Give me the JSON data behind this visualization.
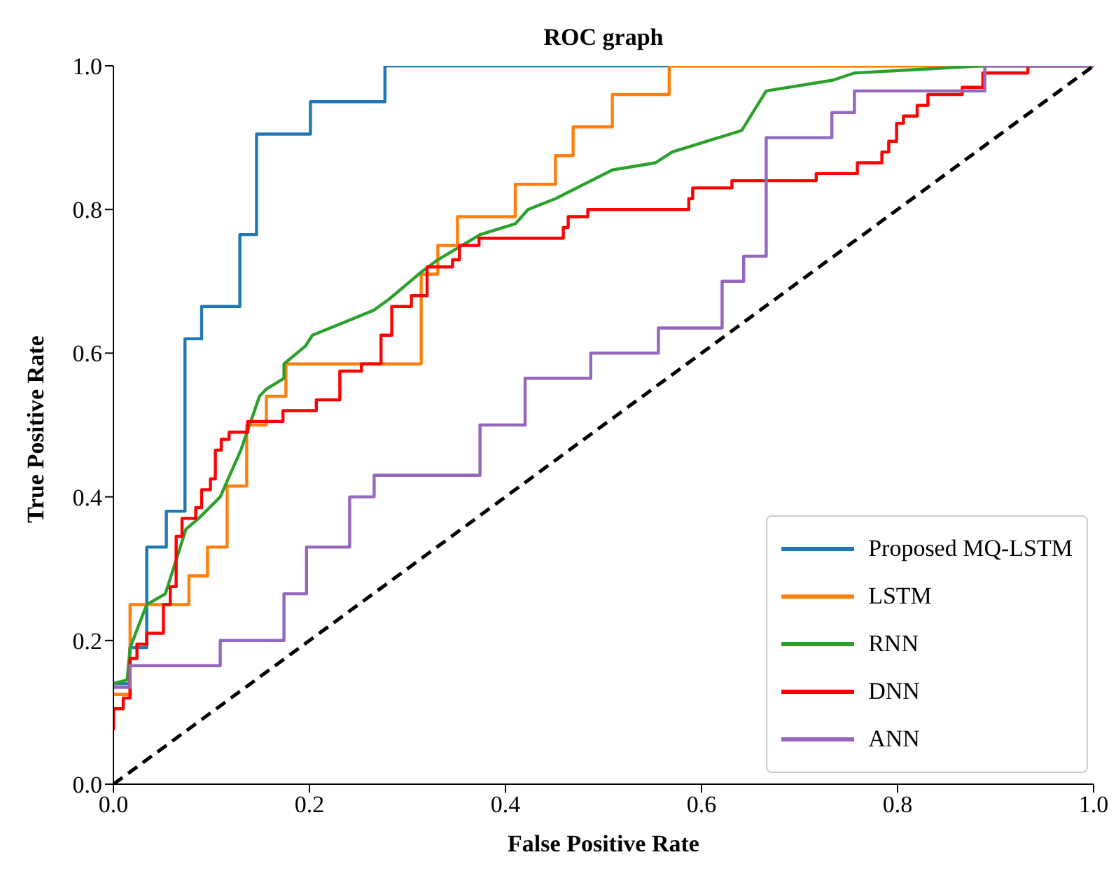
{
  "chart_data": {
    "type": "line",
    "title": "ROC graph",
    "xlabel": "False Positive Rate",
    "ylabel": "True Positive Rate",
    "xlim": [
      0,
      1
    ],
    "ylim": [
      0,
      1
    ],
    "xticks": [
      {
        "value": 0,
        "label": "0.0"
      },
      {
        "value": 0.2,
        "label": "0.2"
      },
      {
        "value": 0.4,
        "label": "0.4"
      },
      {
        "value": 0.6,
        "label": "0.6"
      },
      {
        "value": 0.8,
        "label": "0.8"
      },
      {
        "value": 1,
        "label": "1.0"
      }
    ],
    "yticks": [
      {
        "value": 0,
        "label": "0.0"
      },
      {
        "value": 0.2,
        "label": "0.2"
      },
      {
        "value": 0.4,
        "label": "0.4"
      },
      {
        "value": 0.6,
        "label": "0.6"
      },
      {
        "value": 0.8,
        "label": "0.8"
      },
      {
        "value": 1,
        "label": "1.0"
      }
    ],
    "grid": false,
    "legend": "bottom right",
    "marker": "none",
    "line_style": "solid",
    "series": [
      {
        "name": "Proposed MQ-LSTM",
        "color": "#1f77b4",
        "x": [
          0,
          0.017,
          0.017,
          0.034,
          0.034,
          0.054,
          0.054,
          0.073,
          0.073,
          0.09,
          0.09,
          0.129,
          0.129,
          0.146,
          0.146,
          0.201,
          0.201,
          0.277,
          0.277,
          1
        ],
        "values": [
          0.14,
          0.14,
          0.19,
          0.19,
          0.33,
          0.33,
          0.38,
          0.38,
          0.62,
          0.62,
          0.665,
          0.665,
          0.765,
          0.765,
          0.905,
          0.905,
          0.95,
          0.95,
          1,
          1
        ]
      },
      {
        "name": "LSTM",
        "color": "#ff7f0e",
        "x": [
          0,
          0.017,
          0.017,
          0.077,
          0.077,
          0.096,
          0.096,
          0.116,
          0.116,
          0.136,
          0.136,
          0.156,
          0.156,
          0.176,
          0.176,
          0.314,
          0.314,
          0.331,
          0.331,
          0.351,
          0.351,
          0.41,
          0.41,
          0.451,
          0.451,
          0.469,
          0.469,
          0.509,
          0.509,
          0.567,
          0.567,
          1
        ],
        "values": [
          0.125,
          0.125,
          0.25,
          0.25,
          0.29,
          0.29,
          0.33,
          0.33,
          0.415,
          0.415,
          0.5,
          0.5,
          0.54,
          0.54,
          0.585,
          0.585,
          0.71,
          0.71,
          0.75,
          0.75,
          0.79,
          0.79,
          0.835,
          0.835,
          0.875,
          0.875,
          0.915,
          0.915,
          0.96,
          0.96,
          1,
          1
        ]
      },
      {
        "name": "RNN",
        "color": "#2ca02c",
        "x": [
          0,
          0.014,
          0.017,
          0.034,
          0.053,
          0.074,
          0.087,
          0.109,
          0.13,
          0.144,
          0.149,
          0.156,
          0.174,
          0.174,
          0.196,
          0.203,
          0.266,
          0.281,
          0.316,
          0.331,
          0.374,
          0.41,
          0.423,
          0.451,
          0.509,
          0.553,
          0.57,
          0.641,
          0.666,
          0.734,
          0.756,
          0.887,
          1
        ],
        "values": [
          0.14,
          0.145,
          0.19,
          0.25,
          0.265,
          0.355,
          0.37,
          0.4,
          0.465,
          0.52,
          0.54,
          0.55,
          0.565,
          0.585,
          0.61,
          0.625,
          0.66,
          0.675,
          0.715,
          0.73,
          0.765,
          0.78,
          0.8,
          0.815,
          0.855,
          0.865,
          0.88,
          0.91,
          0.965,
          0.98,
          0.99,
          1,
          1
        ]
      },
      {
        "name": "DNN",
        "color": "#ff0000",
        "x": [
          0,
          0,
          0.01,
          0.01,
          0.017,
          0.017,
          0.024,
          0.024,
          0.034,
          0.034,
          0.051,
          0.051,
          0.058,
          0.058,
          0.064,
          0.064,
          0.07,
          0.07,
          0.084,
          0.084,
          0.09,
          0.09,
          0.099,
          0.099,
          0.104,
          0.104,
          0.11,
          0.11,
          0.118,
          0.118,
          0.137,
          0.137,
          0.173,
          0.173,
          0.207,
          0.207,
          0.231,
          0.231,
          0.253,
          0.253,
          0.273,
          0.273,
          0.284,
          0.284,
          0.304,
          0.304,
          0.32,
          0.32,
          0.346,
          0.346,
          0.353,
          0.353,
          0.373,
          0.373,
          0.459,
          0.459,
          0.464,
          0.464,
          0.484,
          0.484,
          0.587,
          0.587,
          0.591,
          0.591,
          0.631,
          0.631,
          0.717,
          0.717,
          0.759,
          0.759,
          0.784,
          0.784,
          0.791,
          0.791,
          0.799,
          0.799,
          0.806,
          0.806,
          0.82,
          0.82,
          0.831,
          0.831,
          0.866,
          0.866,
          0.887,
          0.887,
          0.933,
          0.933,
          1
        ],
        "values": [
          0.075,
          0.105,
          0.105,
          0.12,
          0.12,
          0.175,
          0.175,
          0.195,
          0.195,
          0.21,
          0.21,
          0.25,
          0.25,
          0.275,
          0.275,
          0.345,
          0.345,
          0.37,
          0.37,
          0.385,
          0.385,
          0.41,
          0.41,
          0.425,
          0.425,
          0.465,
          0.465,
          0.48,
          0.48,
          0.49,
          0.49,
          0.505,
          0.505,
          0.52,
          0.52,
          0.535,
          0.535,
          0.575,
          0.575,
          0.585,
          0.585,
          0.625,
          0.625,
          0.665,
          0.665,
          0.68,
          0.68,
          0.72,
          0.72,
          0.73,
          0.73,
          0.75,
          0.75,
          0.76,
          0.76,
          0.775,
          0.775,
          0.79,
          0.79,
          0.8,
          0.8,
          0.815,
          0.815,
          0.83,
          0.83,
          0.84,
          0.84,
          0.85,
          0.85,
          0.865,
          0.865,
          0.88,
          0.88,
          0.895,
          0.895,
          0.92,
          0.92,
          0.93,
          0.93,
          0.945,
          0.945,
          0.96,
          0.96,
          0.97,
          0.97,
          0.99,
          0.99,
          1,
          1
        ]
      },
      {
        "name": "ANN",
        "color": "#9467bd",
        "x": [
          0,
          0.017,
          0.017,
          0.109,
          0.109,
          0.174,
          0.174,
          0.197,
          0.197,
          0.241,
          0.241,
          0.266,
          0.266,
          0.374,
          0.374,
          0.42,
          0.42,
          0.487,
          0.487,
          0.556,
          0.556,
          0.621,
          0.621,
          0.643,
          0.643,
          0.666,
          0.666,
          0.733,
          0.733,
          0.756,
          0.756,
          0.889,
          0.889,
          1
        ],
        "values": [
          0.135,
          0.135,
          0.165,
          0.165,
          0.2,
          0.2,
          0.265,
          0.265,
          0.33,
          0.33,
          0.4,
          0.4,
          0.43,
          0.43,
          0.5,
          0.5,
          0.565,
          0.565,
          0.6,
          0.6,
          0.635,
          0.635,
          0.7,
          0.7,
          0.735,
          0.735,
          0.9,
          0.9,
          0.935,
          0.935,
          0.965,
          0.965,
          1,
          1
        ]
      },
      {
        "color": "#000000",
        "line_style": "dashed",
        "x": [
          0,
          1
        ],
        "values": [
          0,
          1
        ]
      }
    ]
  }
}
